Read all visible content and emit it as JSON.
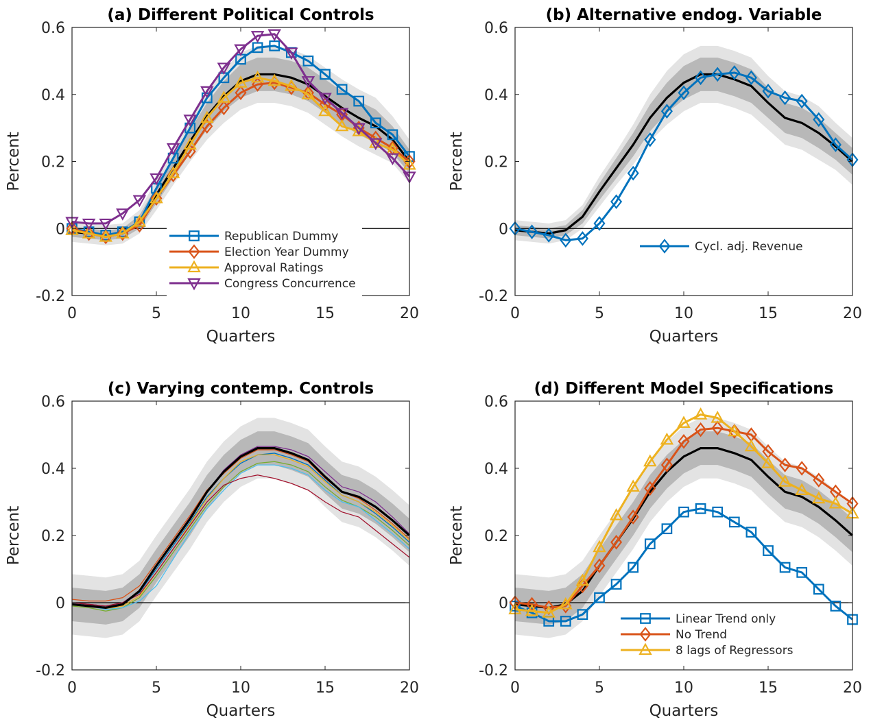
{
  "chart_data": [
    {
      "type": "line",
      "title": "(a) Different Political Controls",
      "xlabel": "Quarters",
      "ylabel": "Percent",
      "xlim": [
        0,
        20
      ],
      "ylim": [
        -0.2,
        0.6
      ],
      "xticks": [
        0,
        5,
        10,
        15,
        20
      ],
      "yticks": [
        -0.2,
        0,
        0.2,
        0.4,
        0.6
      ],
      "ytick_labels": [
        "-0.2",
        "0",
        "0.2",
        "0.4",
        "0.6"
      ],
      "legend_position": "bottom-right",
      "baseline": [
        -0.01,
        -0.015,
        -0.02,
        -0.015,
        0.02,
        0.1,
        0.18,
        0.26,
        0.335,
        0.395,
        0.44,
        0.46,
        0.46,
        0.45,
        0.43,
        0.395,
        0.36,
        0.33,
        0.305,
        0.265,
        0.2
      ],
      "band_inner": {
        "lower": [
          -0.025,
          -0.03,
          -0.035,
          -0.03,
          0.0,
          0.075,
          0.15,
          0.225,
          0.295,
          0.35,
          0.39,
          0.41,
          0.41,
          0.4,
          0.38,
          0.345,
          0.31,
          0.28,
          0.255,
          0.225,
          0.165
        ],
        "upper": [
          0.005,
          0.0,
          -0.005,
          0.0,
          0.04,
          0.125,
          0.21,
          0.295,
          0.375,
          0.44,
          0.49,
          0.51,
          0.51,
          0.5,
          0.48,
          0.445,
          0.41,
          0.38,
          0.355,
          0.305,
          0.235
        ]
      },
      "band_outer": {
        "lower": [
          -0.04,
          -0.045,
          -0.05,
          -0.045,
          -0.015,
          0.055,
          0.13,
          0.2,
          0.265,
          0.315,
          0.355,
          0.375,
          0.375,
          0.365,
          0.345,
          0.31,
          0.275,
          0.245,
          0.22,
          0.195,
          0.135
        ],
        "upper": [
          0.02,
          0.015,
          0.01,
          0.015,
          0.055,
          0.145,
          0.23,
          0.32,
          0.405,
          0.475,
          0.525,
          0.545,
          0.545,
          0.535,
          0.515,
          0.48,
          0.445,
          0.415,
          0.39,
          0.335,
          0.265
        ]
      },
      "series": [
        {
          "name": "Republican Dummy",
          "color": "#0072BD",
          "marker": "square",
          "values": [
            0.0,
            -0.01,
            -0.02,
            -0.01,
            0.02,
            0.12,
            0.21,
            0.3,
            0.39,
            0.45,
            0.505,
            0.54,
            0.545,
            0.525,
            0.5,
            0.46,
            0.415,
            0.38,
            0.315,
            0.28,
            0.215
          ]
        },
        {
          "name": "Election Year Dummy",
          "color": "#D95319",
          "marker": "diamond",
          "values": [
            0.0,
            -0.015,
            -0.025,
            -0.015,
            0.01,
            0.09,
            0.16,
            0.23,
            0.305,
            0.36,
            0.405,
            0.43,
            0.435,
            0.42,
            0.405,
            0.37,
            0.34,
            0.3,
            0.27,
            0.24,
            0.2
          ]
        },
        {
          "name": "Approval Ratings",
          "color": "#EDB120",
          "marker": "triangle-up",
          "values": [
            -0.005,
            -0.015,
            -0.025,
            -0.015,
            0.02,
            0.09,
            0.165,
            0.25,
            0.33,
            0.39,
            0.435,
            0.45,
            0.44,
            0.425,
            0.4,
            0.35,
            0.305,
            0.29,
            0.255,
            0.235,
            0.19
          ]
        },
        {
          "name": "Congress Concurrence",
          "color": "#7E2F8E",
          "marker": "triangle-down",
          "values": [
            0.02,
            0.015,
            0.015,
            0.045,
            0.085,
            0.15,
            0.24,
            0.325,
            0.41,
            0.48,
            0.535,
            0.575,
            0.58,
            0.525,
            0.44,
            0.39,
            0.345,
            0.3,
            0.255,
            0.21,
            0.155
          ]
        }
      ]
    },
    {
      "type": "line",
      "title": "(b) Alternative endog. Variable",
      "xlabel": "Quarters",
      "ylabel": "Percent",
      "xlim": [
        0,
        20
      ],
      "ylim": [
        -0.2,
        0.6
      ],
      "xticks": [
        0,
        5,
        10,
        15,
        20
      ],
      "yticks": [
        -0.2,
        0,
        0.2,
        0.4,
        0.6
      ],
      "ytick_labels": [
        "-0.2",
        "0",
        "0.2",
        "0.4",
        "0.6"
      ],
      "legend_position": "bottom-right",
      "baseline": [
        -0.005,
        -0.01,
        -0.015,
        -0.005,
        0.035,
        0.11,
        0.18,
        0.25,
        0.33,
        0.39,
        0.435,
        0.46,
        0.46,
        0.445,
        0.425,
        0.375,
        0.33,
        0.315,
        0.285,
        0.245,
        0.2
      ],
      "band_inner": {
        "lower": [
          -0.02,
          -0.025,
          -0.03,
          -0.02,
          0.015,
          0.085,
          0.15,
          0.215,
          0.29,
          0.345,
          0.385,
          0.41,
          0.41,
          0.395,
          0.375,
          0.33,
          0.285,
          0.27,
          0.24,
          0.205,
          0.16
        ]
      },
      "band_outer": {
        "lower": [
          -0.035,
          -0.04,
          -0.045,
          -0.035,
          0.0,
          0.065,
          0.13,
          0.19,
          0.26,
          0.31,
          0.35,
          0.375,
          0.375,
          0.36,
          0.34,
          0.295,
          0.25,
          0.235,
          0.205,
          0.175,
          0.13
        ]
      },
      "series": [
        {
          "name": "Cycl. adj. Revenue",
          "color": "#0072BD",
          "marker": "diamond",
          "values": [
            0.0,
            -0.01,
            -0.02,
            -0.035,
            -0.03,
            0.015,
            0.08,
            0.165,
            0.265,
            0.35,
            0.405,
            0.45,
            0.46,
            0.465,
            0.45,
            0.41,
            0.39,
            0.38,
            0.325,
            0.25,
            0.205
          ]
        }
      ]
    },
    {
      "type": "line",
      "title": "(c) Varying contemp. Controls",
      "xlabel": "Quarters",
      "ylabel": "Percent",
      "xlim": [
        0,
        20
      ],
      "ylim": [
        -0.2,
        0.6
      ],
      "xticks": [
        0,
        5,
        10,
        15,
        20
      ],
      "yticks": [
        -0.2,
        0,
        0.2,
        0.4,
        0.6
      ],
      "ytick_labels": [
        "-0.2",
        "0",
        "0.2",
        "0.4",
        "0.6"
      ],
      "baseline": [
        -0.005,
        -0.01,
        -0.015,
        -0.005,
        0.035,
        0.11,
        0.18,
        0.25,
        0.33,
        0.39,
        0.435,
        0.46,
        0.46,
        0.445,
        0.425,
        0.375,
        0.33,
        0.315,
        0.285,
        0.245,
        0.2
      ],
      "series": [
        {
          "color": "#0072BD",
          "values": [
            0.0,
            -0.005,
            -0.01,
            0.0,
            0.03,
            0.1,
            0.17,
            0.24,
            0.315,
            0.37,
            0.415,
            0.44,
            0.445,
            0.43,
            0.41,
            0.365,
            0.32,
            0.3,
            0.265,
            0.225,
            0.18
          ]
        },
        {
          "color": "#D95319",
          "values": [
            0.01,
            0.005,
            0.005,
            0.015,
            0.05,
            0.12,
            0.19,
            0.26,
            0.335,
            0.385,
            0.43,
            0.455,
            0.455,
            0.44,
            0.42,
            0.37,
            0.33,
            0.31,
            0.275,
            0.235,
            0.19
          ]
        },
        {
          "color": "#EDB120",
          "values": [
            -0.005,
            -0.01,
            -0.02,
            -0.01,
            0.02,
            0.09,
            0.16,
            0.235,
            0.31,
            0.37,
            0.42,
            0.44,
            0.44,
            0.425,
            0.405,
            0.36,
            0.32,
            0.3,
            0.27,
            0.23,
            0.185
          ]
        },
        {
          "color": "#7E2F8E",
          "values": [
            0.0,
            -0.005,
            -0.01,
            0.0,
            0.035,
            0.11,
            0.18,
            0.255,
            0.33,
            0.395,
            0.44,
            0.465,
            0.465,
            0.455,
            0.435,
            0.39,
            0.345,
            0.33,
            0.3,
            0.255,
            0.205
          ]
        },
        {
          "color": "#77AC30",
          "values": [
            -0.01,
            -0.015,
            -0.025,
            -0.015,
            0.015,
            0.08,
            0.15,
            0.22,
            0.29,
            0.345,
            0.39,
            0.415,
            0.42,
            0.41,
            0.39,
            0.345,
            0.305,
            0.285,
            0.255,
            0.215,
            0.17
          ]
        },
        {
          "color": "#4DBEEE",
          "values": [
            0.0,
            -0.01,
            -0.02,
            -0.015,
            0.005,
            0.05,
            0.13,
            0.21,
            0.28,
            0.335,
            0.385,
            0.41,
            0.41,
            0.4,
            0.38,
            0.335,
            0.3,
            0.285,
            0.245,
            0.205,
            0.16
          ]
        },
        {
          "color": "#A2142F",
          "values": [
            0.0,
            -0.005,
            -0.01,
            0.0,
            0.025,
            0.09,
            0.16,
            0.23,
            0.3,
            0.35,
            0.37,
            0.38,
            0.37,
            0.355,
            0.335,
            0.3,
            0.27,
            0.255,
            0.215,
            0.175,
            0.135
          ]
        }
      ]
    },
    {
      "type": "line",
      "title": "(d) Different Model Specifications",
      "xlabel": "Quarters",
      "ylabel": "Percent",
      "xlim": [
        0,
        20
      ],
      "ylim": [
        -0.2,
        0.6
      ],
      "xticks": [
        0,
        5,
        10,
        15,
        20
      ],
      "yticks": [
        -0.2,
        0,
        0.2,
        0.4,
        0.6
      ],
      "ytick_labels": [
        "-0.2",
        "0",
        "0.2",
        "0.4",
        "0.6"
      ],
      "legend_position": "bottom-right",
      "baseline": [
        -0.005,
        -0.01,
        -0.015,
        -0.005,
        0.035,
        0.11,
        0.18,
        0.25,
        0.33,
        0.39,
        0.435,
        0.46,
        0.46,
        0.445,
        0.425,
        0.375,
        0.33,
        0.315,
        0.285,
        0.245,
        0.2
      ],
      "series": [
        {
          "name": "Linear Trend only",
          "color": "#0072BD",
          "marker": "square",
          "values": [
            -0.01,
            -0.03,
            -0.055,
            -0.055,
            -0.035,
            0.015,
            0.055,
            0.105,
            0.175,
            0.22,
            0.27,
            0.28,
            0.27,
            0.24,
            0.21,
            0.155,
            0.105,
            0.09,
            0.04,
            -0.01,
            -0.05
          ]
        },
        {
          "name": "No Trend",
          "color": "#D95319",
          "marker": "diamond",
          "values": [
            0.0,
            -0.005,
            -0.015,
            -0.01,
            0.05,
            0.11,
            0.18,
            0.255,
            0.34,
            0.41,
            0.48,
            0.515,
            0.52,
            0.51,
            0.5,
            0.45,
            0.41,
            0.4,
            0.365,
            0.33,
            0.295
          ]
        },
        {
          "name": "8 lags of Regressors",
          "color": "#EDB120",
          "marker": "triangle-up",
          "values": [
            -0.02,
            -0.025,
            -0.03,
            -0.005,
            0.065,
            0.165,
            0.26,
            0.345,
            0.42,
            0.485,
            0.535,
            0.56,
            0.55,
            0.51,
            0.465,
            0.415,
            0.36,
            0.335,
            0.31,
            0.295,
            0.265
          ]
        }
      ]
    }
  ]
}
